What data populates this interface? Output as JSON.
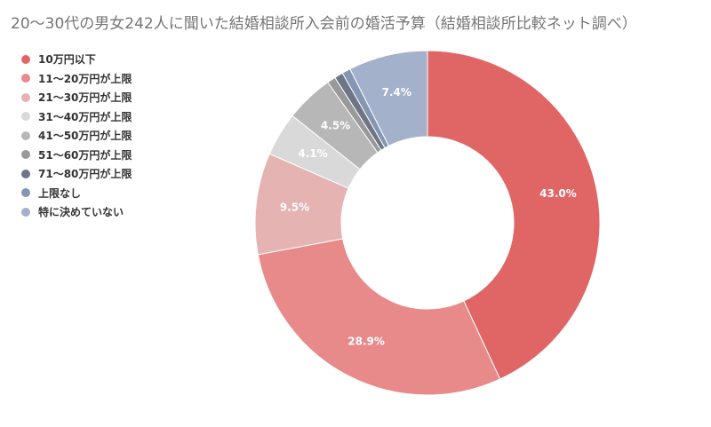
{
  "chart_data": {
    "type": "pie",
    "title": "20〜30代の男女242人に聞いた結婚相談所入会前の婚活予算（結婚相談所比較ネット調べ）",
    "legend_position": "left",
    "donut": true,
    "slices": [
      {
        "name": "10万円以下",
        "value": 43.0,
        "label": "43.0%",
        "color": "#e06666"
      },
      {
        "name": "11〜20万円が上限",
        "value": 28.9,
        "label": "28.9%",
        "color": "#e88a8a"
      },
      {
        "name": "21〜30万円が上限",
        "value": 9.5,
        "label": "9.5%",
        "color": "#e6b3b3"
      },
      {
        "name": "31〜40万円が上限",
        "value": 4.1,
        "label": "4.1%",
        "color": "#d9d9d9"
      },
      {
        "name": "41〜50万円が上限",
        "value": 4.5,
        "label": "4.5%",
        "color": "#b7b7b7"
      },
      {
        "name": "51〜60万円が上限",
        "value": 0.8,
        "label": "",
        "color": "#999999"
      },
      {
        "name": "71〜80万円が上限",
        "value": 0.8,
        "label": "",
        "color": "#6e7585"
      },
      {
        "name": "上限なし",
        "value": 0.8,
        "label": "",
        "color": "#8596b3"
      },
      {
        "name": "特に決めていない",
        "value": 7.4,
        "label": "7.4%",
        "color": "#a3b1cb"
      }
    ]
  }
}
